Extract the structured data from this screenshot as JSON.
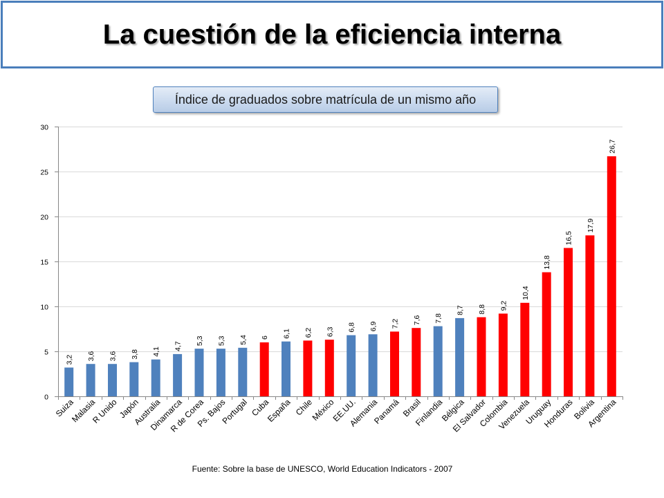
{
  "title": "La cuestión de la eficiencia interna",
  "source": "Fuente: Sobre la base de UNESCO, World Education Indicators - 2007",
  "colors": {
    "frame_border": "#4a7ebb",
    "bar_blue": "#4f81bd",
    "bar_red": "#ff0000",
    "subtitle_fill": "#c9d9ee"
  },
  "chart_data": {
    "type": "bar",
    "title": "Índice de graduados sobre matrícula de un mismo año",
    "categories": [
      "Suiza",
      "Malasia",
      "R Unido",
      "Japón",
      "Australia",
      "Dinamarca",
      "R de Corea",
      "Ps. Bajos",
      "Portugal",
      "Cuba",
      "España",
      "Chile",
      "México",
      "EE.UU.",
      "Alemania",
      "Panamá",
      "Brasil",
      "Finlandia",
      "Bélgica",
      "El Salvador",
      "Colombia",
      "Venezuela",
      "Uruguay",
      "Honduras",
      "Bolivia",
      "Argentina"
    ],
    "values": [
      3.2,
      3.6,
      3.6,
      3.8,
      4.1,
      4.7,
      5.3,
      5.3,
      5.4,
      6,
      6.1,
      6.2,
      6.3,
      6.8,
      6.9,
      7.2,
      7.6,
      7.8,
      8.7,
      8.8,
      9.2,
      10.4,
      13.8,
      16.5,
      17.9,
      26.7
    ],
    "labels": [
      "3,2",
      "3,6",
      "3,6",
      "3,8",
      "4,1",
      "4,7",
      "5,3",
      "5,3",
      "5,4",
      "6",
      "6,1",
      "6,2",
      "6,3",
      "6,8",
      "6,9",
      "7,2",
      "7,6",
      "7,8",
      "8,7",
      "8,8",
      "9,2",
      "10,4",
      "13,8",
      "16,5",
      "17,9",
      "26,7"
    ],
    "bar_colors": [
      "#4f81bd",
      "#4f81bd",
      "#4f81bd",
      "#4f81bd",
      "#4f81bd",
      "#4f81bd",
      "#4f81bd",
      "#4f81bd",
      "#4f81bd",
      "#ff0000",
      "#4f81bd",
      "#ff0000",
      "#ff0000",
      "#4f81bd",
      "#4f81bd",
      "#ff0000",
      "#ff0000",
      "#4f81bd",
      "#4f81bd",
      "#ff0000",
      "#ff0000",
      "#ff0000",
      "#ff0000",
      "#ff0000",
      "#ff0000",
      "#ff0000"
    ],
    "ylim": [
      0,
      30
    ],
    "yticks": [
      0,
      5,
      10,
      15,
      20,
      25,
      30
    ],
    "grid": true
  }
}
